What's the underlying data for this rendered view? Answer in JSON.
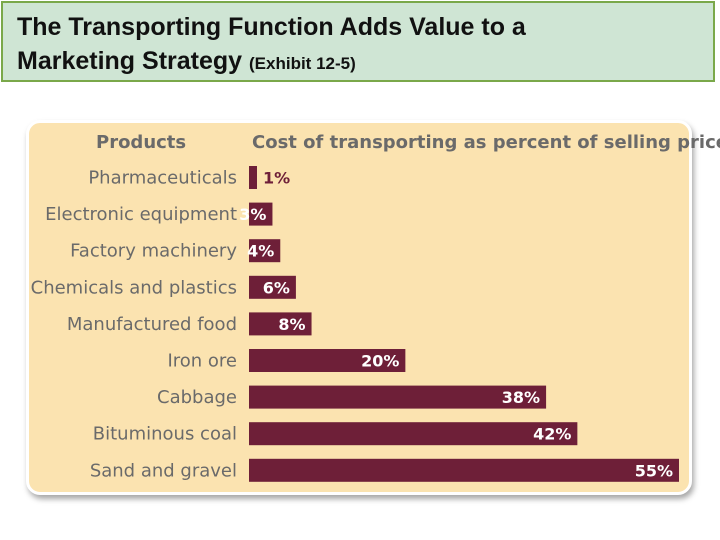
{
  "slide": {
    "title_line1": "The Transporting Function Adds Value to a",
    "title_line2": "Marketing Strategy",
    "title_suffix": "(Exhibit 12-5)"
  },
  "chart_data": {
    "type": "bar",
    "orientation": "horizontal",
    "header_categories": "Products",
    "header_values": "Cost of transporting as percent of selling price",
    "categories": [
      "Pharmaceuticals",
      "Electronic equipment",
      "Factory machinery",
      "Chemicals and plastics",
      "Manufactured food",
      "Iron ore",
      "Cabbage",
      "Bituminous coal",
      "Sand and gravel"
    ],
    "values": [
      1,
      3,
      4,
      6,
      8,
      20,
      38,
      42,
      55
    ],
    "labels": [
      "1%",
      "3%",
      "4%",
      "6%",
      "8%",
      "20%",
      "38%",
      "42%",
      "55%"
    ],
    "xlim": [
      0,
      55
    ],
    "colors": {
      "bar": "#6e1f38",
      "background": "#fbe3b0",
      "label_inside": "#ffffff",
      "label_outside": "#6e1f38"
    }
  }
}
